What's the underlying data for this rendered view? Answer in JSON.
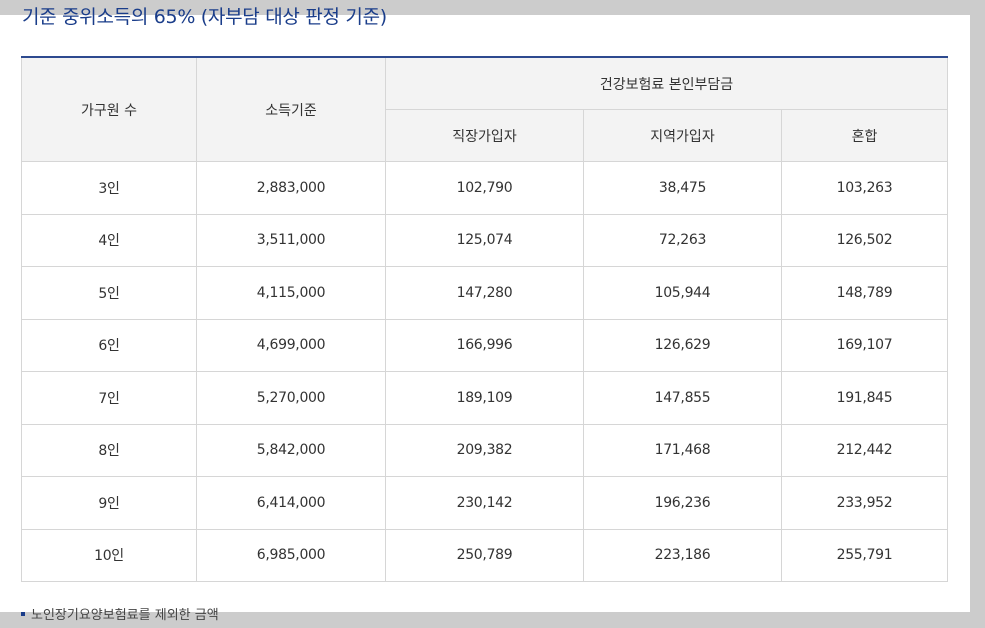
{
  "title": "기준 중위소득의 65% (자부담 대상 판정 기준)",
  "table": {
    "headers": {
      "household_size": "가구원 수",
      "income_standard": "소득기준",
      "premium_group": "건강보험료 본인부담금",
      "employee": "직장가입자",
      "regional": "지역가입자",
      "mixed": "혼합"
    },
    "rows": [
      {
        "household": "3인",
        "income": "2,883,000",
        "employee": "102,790",
        "regional": "38,475",
        "mixed": "103,263"
      },
      {
        "household": "4인",
        "income": "3,511,000",
        "employee": "125,074",
        "regional": "72,263",
        "mixed": "126,502"
      },
      {
        "household": "5인",
        "income": "4,115,000",
        "employee": "147,280",
        "regional": "105,944",
        "mixed": "148,789"
      },
      {
        "household": "6인",
        "income": "4,699,000",
        "employee": "166,996",
        "regional": "126,629",
        "mixed": "169,107"
      },
      {
        "household": "7인",
        "income": "5,270,000",
        "employee": "189,109",
        "regional": "147,855",
        "mixed": "191,845"
      },
      {
        "household": "8인",
        "income": "5,842,000",
        "employee": "209,382",
        "regional": "171,468",
        "mixed": "212,442"
      },
      {
        "household": "9인",
        "income": "6,414,000",
        "employee": "230,142",
        "regional": "196,236",
        "mixed": "233,952"
      },
      {
        "household": "10인",
        "income": "6,985,000",
        "employee": "250,789",
        "regional": "223,186",
        "mixed": "255,791"
      }
    ]
  },
  "note": "노인장기요양보험료를 제외한 금액"
}
